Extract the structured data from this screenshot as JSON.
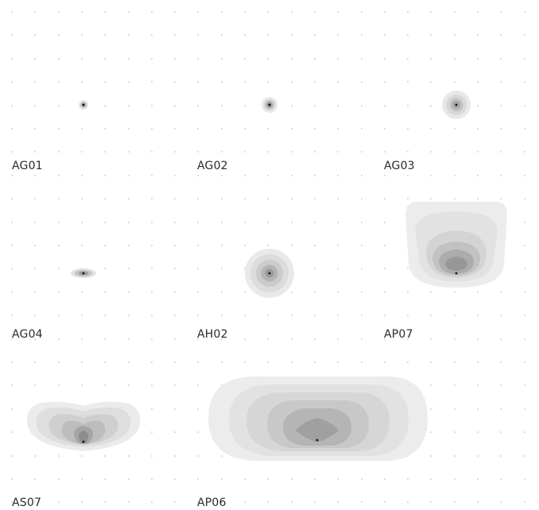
{
  "specimens": [
    {
      "id": "ag01",
      "label": "AG01"
    },
    {
      "id": "ag02",
      "label": "AG02"
    },
    {
      "id": "ag03",
      "label": "AG03"
    },
    {
      "id": "ag04",
      "label": "AG04"
    },
    {
      "id": "ah02",
      "label": "AH02"
    },
    {
      "id": "ap07",
      "label": "AP07"
    },
    {
      "id": "as07",
      "label": "AS07"
    },
    {
      "id": "ap06",
      "label": "AP06"
    }
  ],
  "colors": {
    "background": "#ffffff",
    "grid_dot": "#b0b0b0",
    "center_dot": "#111111",
    "contour_light": "#eeeeee",
    "contour_dark": "#8a8a8a",
    "label_text": "#2a2a2a"
  }
}
